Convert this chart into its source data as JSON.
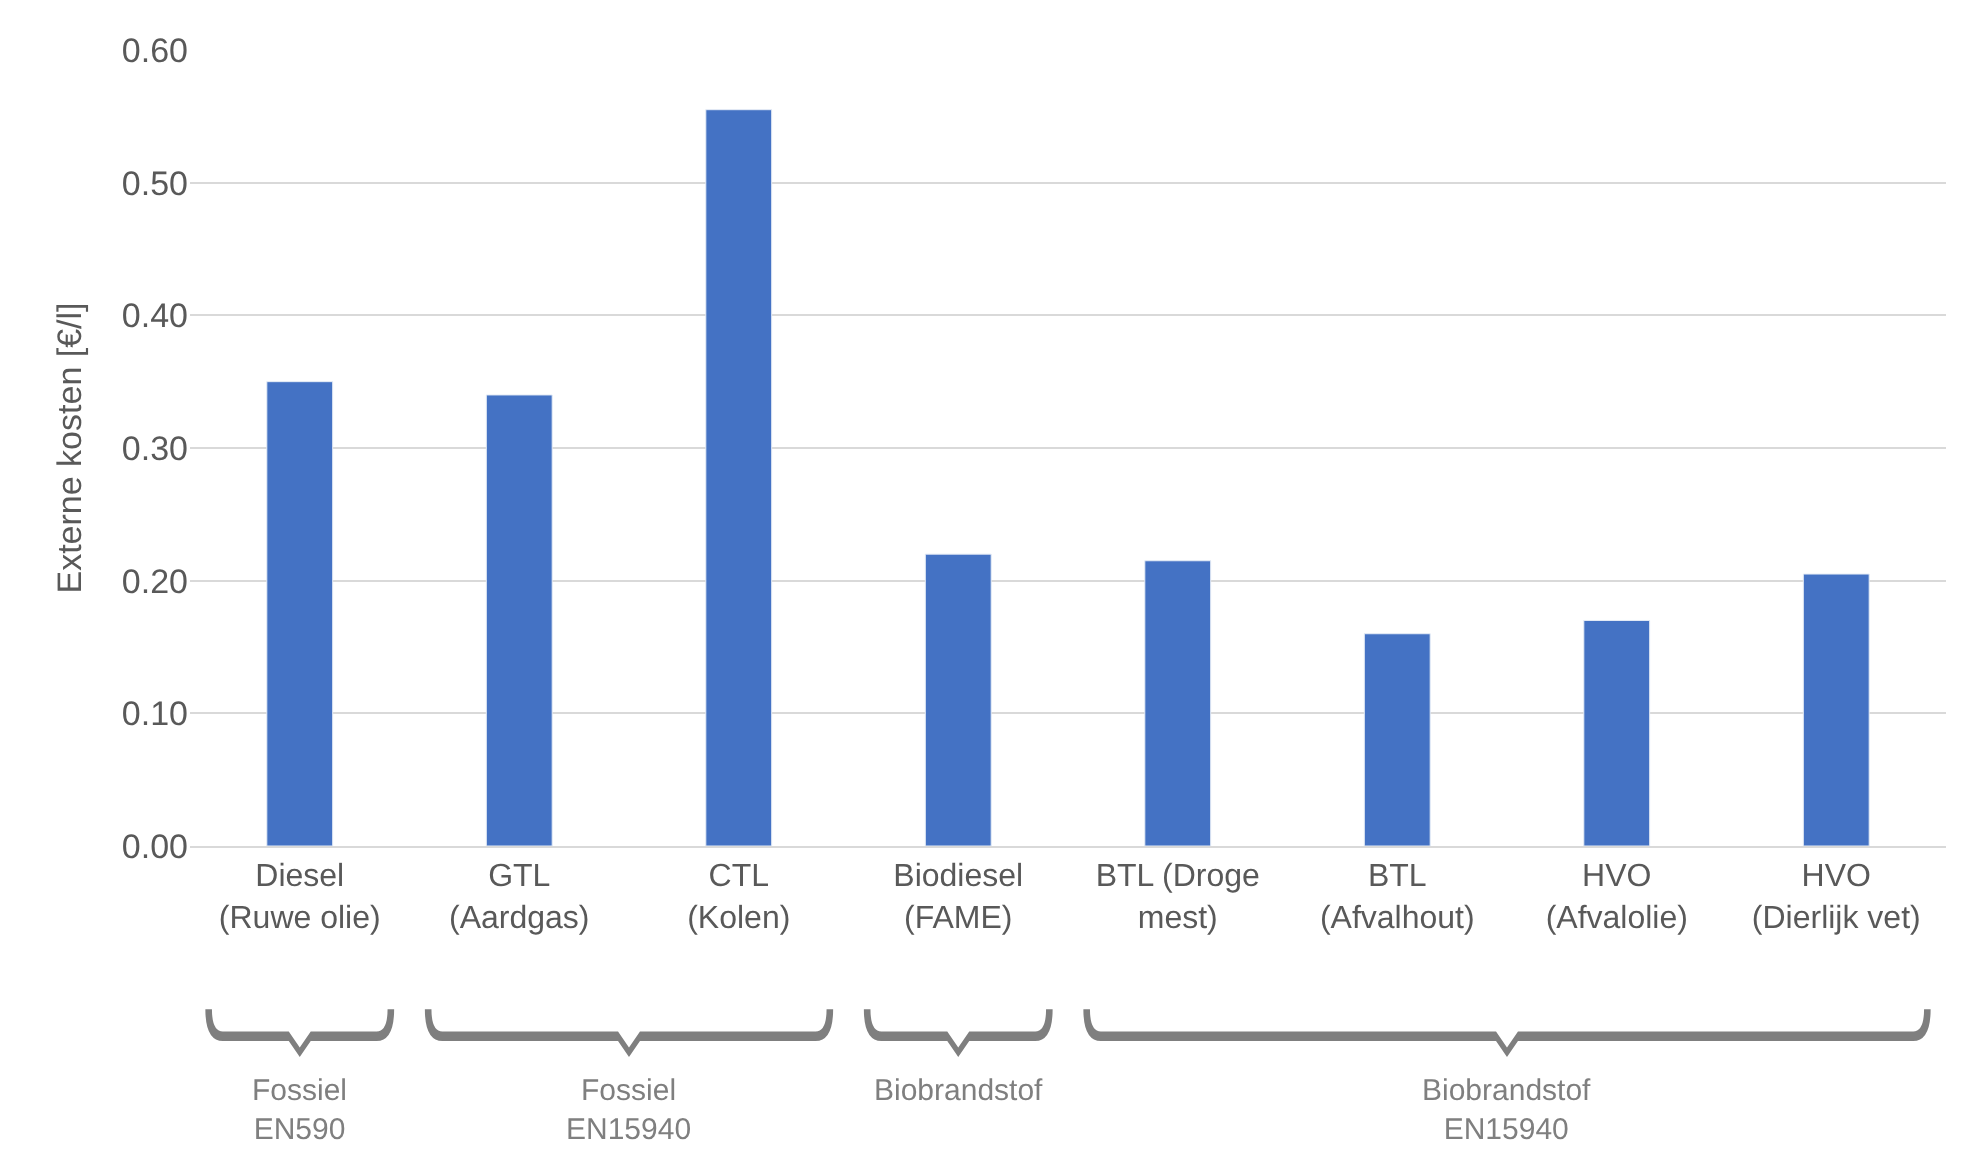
{
  "chart_data": {
    "type": "bar",
    "ylabel": "Externe kosten [€/l]",
    "categories": [
      "Diesel\n(Ruwe olie)",
      "GTL\n(Aardgas)",
      "CTL\n(Kolen)",
      "Biodiesel\n(FAME)",
      "BTL (Droge\nmest)",
      "BTL\n(Afvalhout)",
      "HVO\n(Afvalolie)",
      "HVO\n(Dierlijk vet)"
    ],
    "values": [
      0.35,
      0.34,
      0.555,
      0.22,
      0.215,
      0.16,
      0.17,
      0.205
    ],
    "color": "#4472c4",
    "ylim": [
      0,
      0.6
    ],
    "yticks": [
      {
        "value": 0,
        "label": "0.00"
      },
      {
        "value": 0.1,
        "label": "0.10"
      },
      {
        "value": 0.2,
        "label": "0.20"
      },
      {
        "value": 0.3,
        "label": "0.30"
      },
      {
        "value": 0.4,
        "label": "0.40"
      },
      {
        "value": 0.5,
        "label": "0.50"
      },
      {
        "value": 0.6,
        "label": "0.60"
      }
    ],
    "grid": "y",
    "annotations": [
      "Fossiel\nEN590",
      "Fossiel\nEN15940",
      "Biobrandstof",
      "Biobrandstof\nEN15940"
    ]
  }
}
